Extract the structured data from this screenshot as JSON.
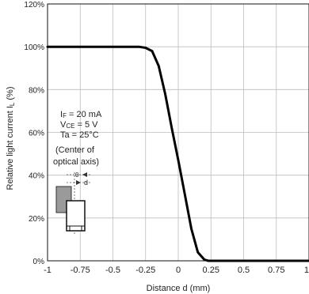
{
  "chart_data": {
    "type": "line",
    "title": "",
    "xlabel": "Distance d (mm)",
    "ylabel": "Relative light current I",
    "ylabel_sub": "L",
    "ylabel_unit": " (%)",
    "xlim": [
      -1,
      1
    ],
    "ylim": [
      0,
      120
    ],
    "grid": true,
    "x_ticks": [
      -1,
      -0.75,
      -0.5,
      -0.25,
      0,
      0.25,
      0.5,
      0.75,
      1
    ],
    "x_tick_labels": [
      "-1",
      "-0.75",
      "-0.5",
      "-0.25",
      "0",
      "0.25",
      "0.5",
      "0.75",
      "1"
    ],
    "y_ticks": [
      0,
      20,
      40,
      60,
      80,
      100,
      120
    ],
    "y_tick_labels": [
      "0%",
      "20%",
      "40%",
      "60%",
      "80%",
      "100%",
      "120%"
    ],
    "series": [
      {
        "x": [
          -1,
          -0.3,
          -0.25,
          -0.2,
          -0.15,
          -0.1,
          -0.05,
          0,
          0.05,
          0.1,
          0.15,
          0.2,
          0.23,
          0.25,
          0.3,
          0.5,
          1
        ],
        "y": [
          100,
          100,
          99.5,
          98,
          91,
          78,
          62,
          47,
          31,
          15,
          4,
          0.5,
          0,
          0,
          0,
          0,
          0
        ]
      }
    ],
    "annotation": {
      "lines": [
        {
          "main": "I",
          "sub": "F",
          "rest": " = 20 mA"
        },
        {
          "main": "V",
          "sub": "CE",
          "rest": " = 5 V"
        },
        {
          "main": "Ta = 25°C",
          "sub": "",
          "rest": ""
        }
      ],
      "note_line1": "(Center of",
      "note_line2": "optical axis)",
      "diagram_zero": "0",
      "diagram_d": "d"
    }
  }
}
